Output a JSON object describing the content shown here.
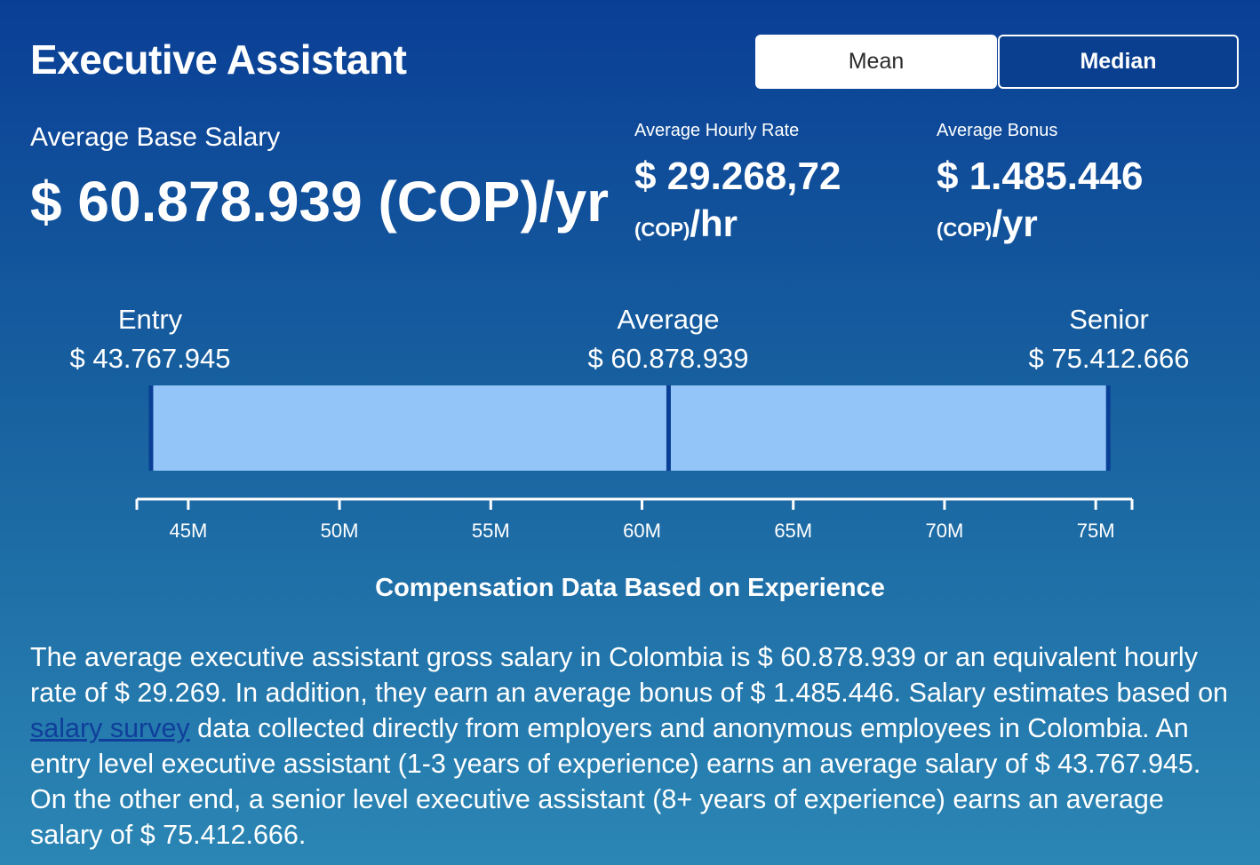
{
  "header": {
    "title": "Executive Assistant",
    "mean_label": "Mean",
    "median_label": "Median"
  },
  "base_salary": {
    "label": "Average Base Salary",
    "value": "$ 60.878.939 (COP)/yr"
  },
  "hourly": {
    "label": "Average Hourly Rate",
    "value": "$ 29.268,72",
    "currency": "(COP)",
    "unit": "/hr"
  },
  "bonus": {
    "label": "Average Bonus",
    "value": "$ 1.485.446",
    "currency": "(COP)",
    "unit": "/yr"
  },
  "levels": {
    "entry": {
      "name": "Entry",
      "value": "$ 43.767.945"
    },
    "average": {
      "name": "Average",
      "value": "$ 60.878.939"
    },
    "senior": {
      "name": "Senior",
      "value": "$ 75.412.666"
    }
  },
  "colors": {
    "bar_fill": "#93c5f8",
    "bar_marker": "#0a3f96",
    "axis": "#ffffff"
  },
  "chart_data": {
    "type": "bar",
    "orientation": "horizontal",
    "range": {
      "start": 43767945,
      "end": 75412666
    },
    "markers": [
      43767945,
      60878939,
      75412666
    ],
    "xlim": [
      43300000,
      76200000
    ],
    "ticks": [
      45000000,
      50000000,
      55000000,
      60000000,
      65000000,
      70000000,
      75000000
    ],
    "tick_labels": [
      "45M",
      "50M",
      "55M",
      "60M",
      "65M",
      "70M",
      "75M"
    ],
    "caption": "Compensation Data Based on Experience"
  },
  "description": {
    "before_link": "The average executive assistant gross salary in Colombia is $ 60.878.939 or an equivalent hourly rate of $ 29.269. In addition, they earn an average bonus of $ 1.485.446. Salary estimates based on ",
    "link_text": "salary survey",
    "after_link": " data collected directly from employers and anonymous employees in Colombia. An entry level executive assistant (1-3 years of experience) earns an average salary of $ 43.767.945. On the other end, a senior level executive assistant (8+ years of experience) earns an average salary of $ 75.412.666."
  }
}
